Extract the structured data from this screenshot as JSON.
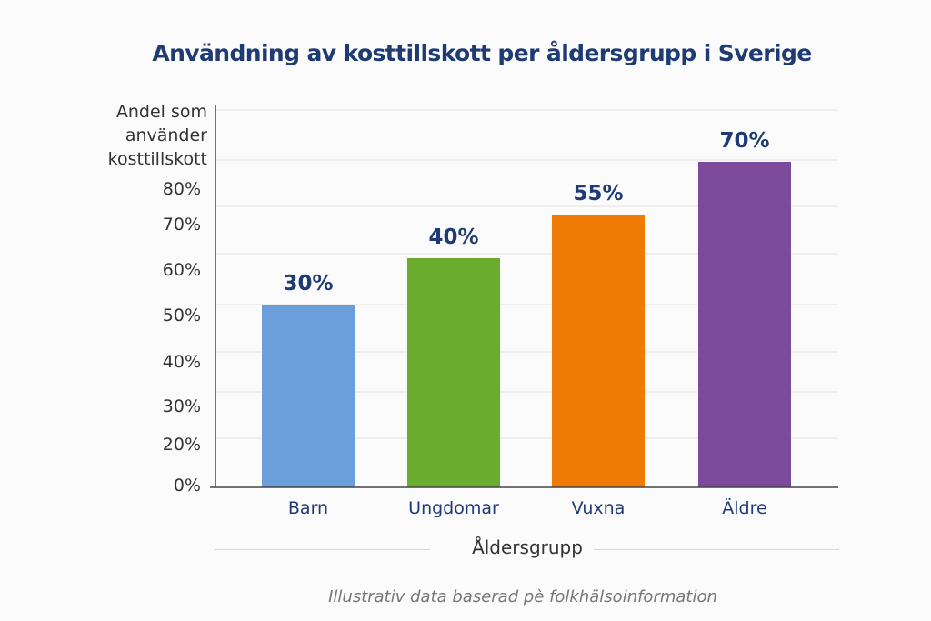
{
  "chart_data": {
    "type": "bar",
    "title": "Användning av kosttillskott per åldersgrupp i Sverige",
    "ylabel": "Andel som använder kosttillskott",
    "ylabel_lines": [
      "Andel som",
      "använder",
      "kosttillskott"
    ],
    "xlabel": "Åldersgrupp",
    "categories": [
      "Barn",
      "Ungdomar",
      "Vuxna",
      "Äldre"
    ],
    "values": [
      30,
      40,
      55,
      70
    ],
    "value_labels": [
      "30%",
      "40%",
      "55%",
      "70%"
    ],
    "colors": [
      "#6a9fdc",
      "#6aac2d",
      "#f07a06",
      "#7c4a9a"
    ],
    "ytick_labels": [
      "80%",
      "70%",
      "60%",
      "50%",
      "40%",
      "30%",
      "20%",
      "0%"
    ],
    "grid": true,
    "footnote": "Illustrativ data baserad pè folkhälsoinformation"
  }
}
